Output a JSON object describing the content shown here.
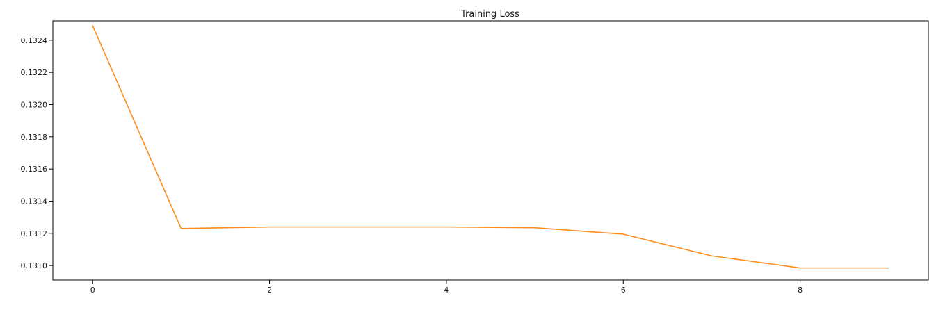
{
  "chart_data": {
    "type": "line",
    "title": "Training Loss",
    "xlabel": "",
    "ylabel": "",
    "xlim": [
      -0.45,
      9.45
    ],
    "ylim": [
      0.13091,
      0.13252
    ],
    "xticks": [
      0,
      2,
      4,
      6,
      8
    ],
    "xtick_labels": [
      "0",
      "2",
      "4",
      "6",
      "8"
    ],
    "yticks": [
      0.131,
      0.1312,
      0.1314,
      0.1316,
      0.1318,
      0.132,
      0.1322,
      0.1324
    ],
    "ytick_labels": [
      "0.1310",
      "0.1312",
      "0.1314",
      "0.1316",
      "0.1318",
      "0.1320",
      "0.1322",
      "0.1324"
    ],
    "grid": false,
    "legend": "none",
    "series": [
      {
        "color": "#ff8c1a",
        "x": [
          0,
          1,
          2,
          3,
          4,
          5,
          6,
          7,
          8,
          9
        ],
        "y": [
          0.13249,
          0.13123,
          0.13124,
          0.13124,
          0.13124,
          0.131235,
          0.131195,
          0.13106,
          0.130985,
          0.130985
        ]
      }
    ]
  }
}
